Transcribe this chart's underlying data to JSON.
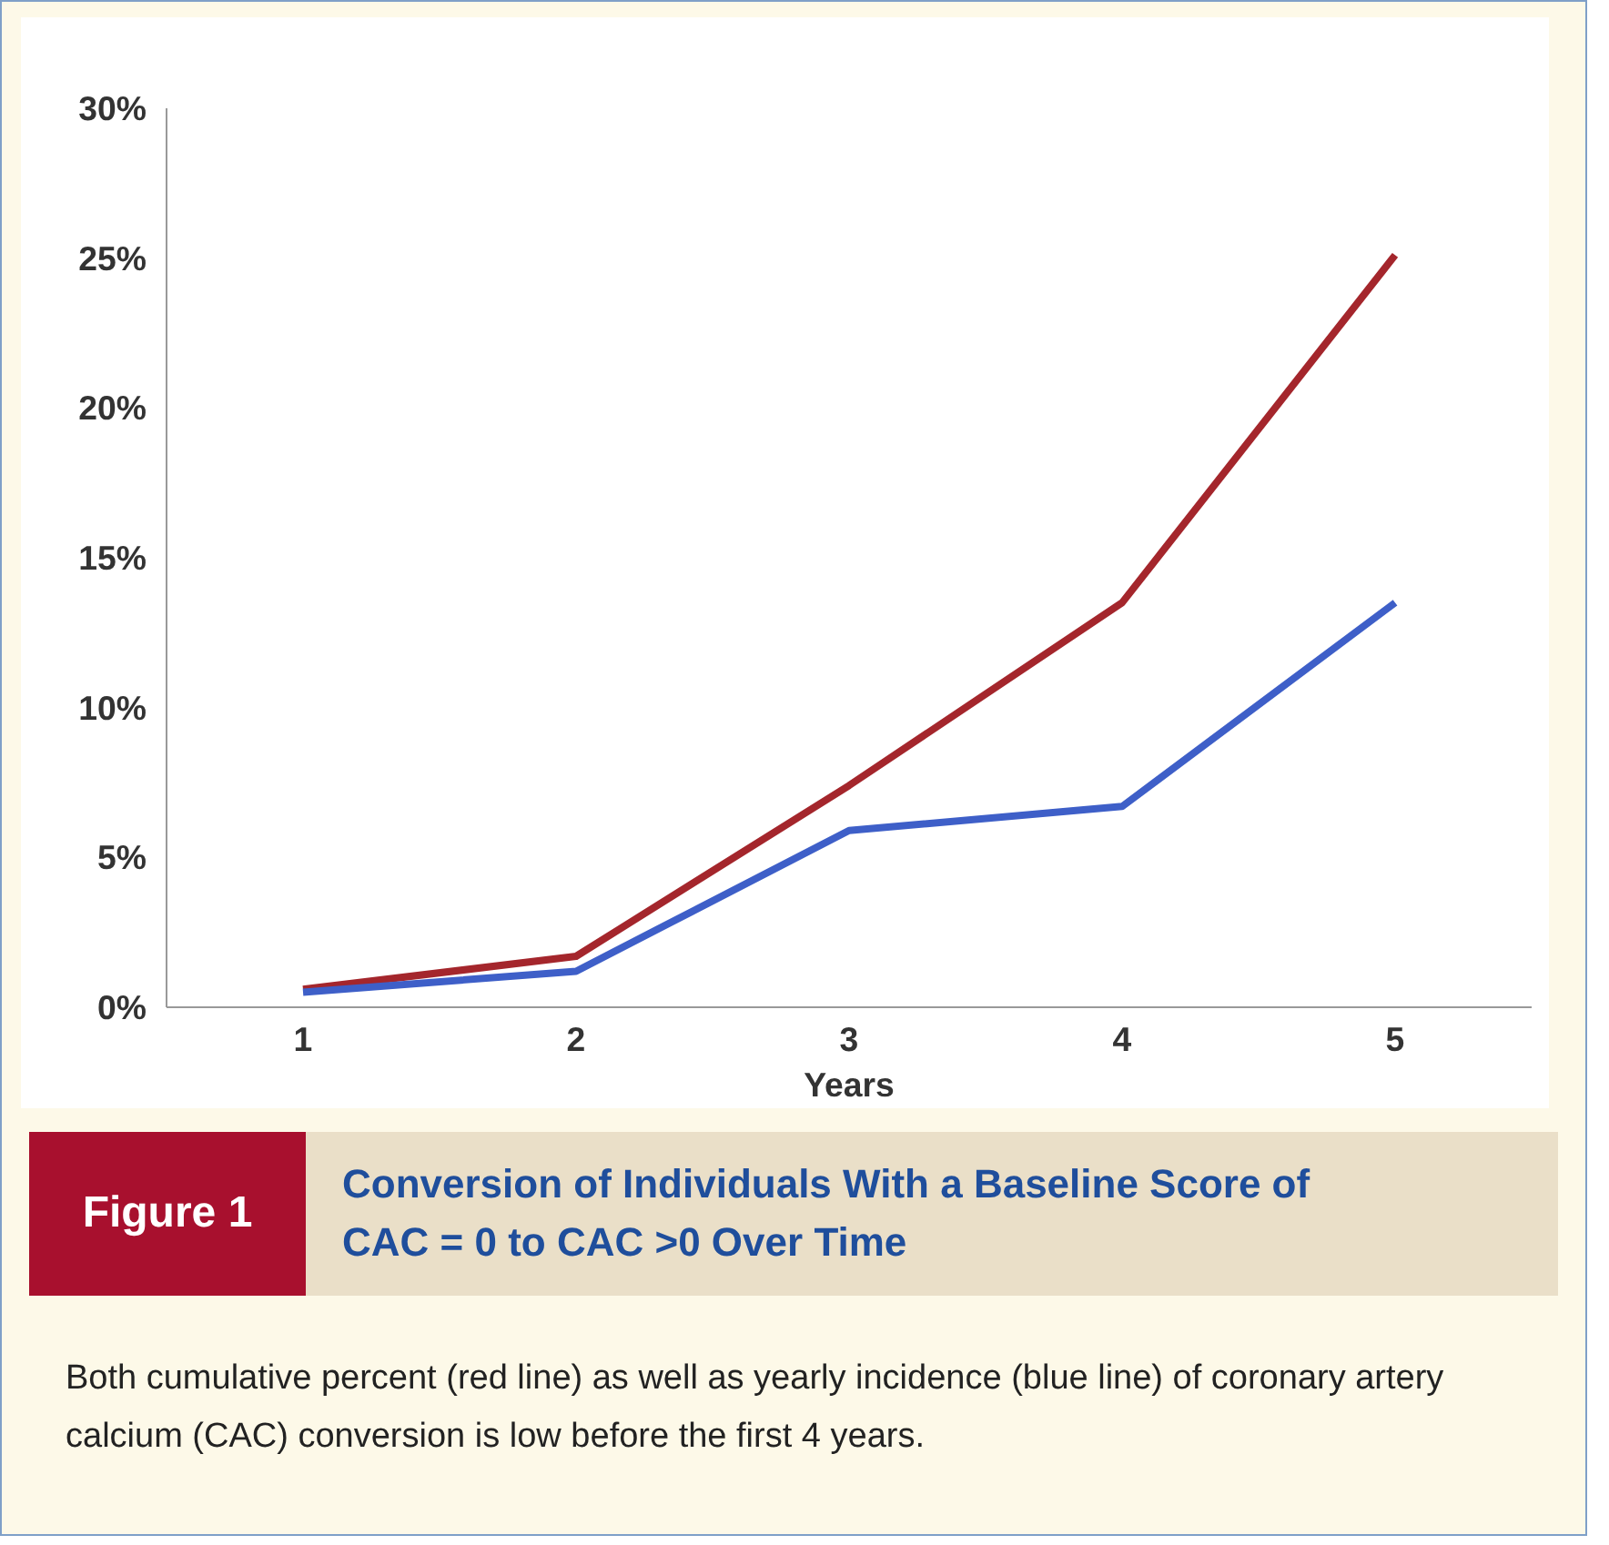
{
  "chart_data": {
    "type": "line",
    "title": "Conversion of Individuals With a Baseline Score of CAC = 0 to CAC >0 Over Time",
    "subtitle": "Figure 1",
    "xlabel": "Years",
    "x": [
      1,
      2,
      3,
      4,
      5
    ],
    "xlim": [
      0.5,
      5.5
    ],
    "xticks": [
      1,
      2,
      3,
      4,
      5
    ],
    "ylim": [
      0,
      30
    ],
    "yticks": [
      {
        "value": 0,
        "label": "0%"
      },
      {
        "value": 5,
        "label": "5%"
      },
      {
        "value": 10,
        "label": "10%"
      },
      {
        "value": 15,
        "label": "15%"
      },
      {
        "value": 20,
        "label": "20%"
      },
      {
        "value": 25,
        "label": "25%"
      },
      {
        "value": 30,
        "label": "30%"
      }
    ],
    "series": [
      {
        "color": "#a4262c",
        "values": [
          0.6,
          1.7,
          7.4,
          13.5,
          25.1
        ]
      },
      {
        "color": "#3e5fc8",
        "values": [
          0.5,
          1.2,
          5.9,
          6.7,
          13.5
        ]
      }
    ],
    "grid": false,
    "marker": "none",
    "line_style": "solid",
    "annotations": [
      "Both cumulative percent (red line) as well as yearly incidence (blue line) of coronary artery calcium (CAC) conversion is low before the first 4 years."
    ]
  }
}
